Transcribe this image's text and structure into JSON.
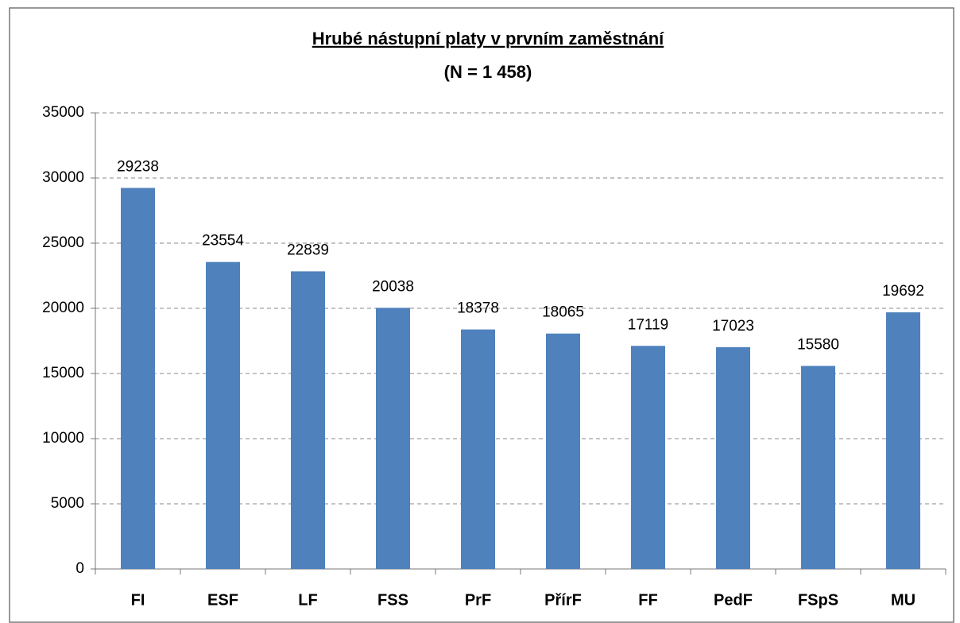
{
  "chart_data": {
    "type": "bar",
    "title": "Hrubé nástupní platy v prvním zaměstnání",
    "subtitle": "(N = 1 458)",
    "categories": [
      "FI",
      "ESF",
      "LF",
      "FSS",
      "PrF",
      "PřírF",
      "FF",
      "PedF",
      "FSpS",
      "MU"
    ],
    "values": [
      29238,
      23554,
      22839,
      20038,
      18378,
      18065,
      17119,
      17023,
      15580,
      19692
    ],
    "color": "#4f81bd",
    "ylim": [
      0,
      35000
    ],
    "yticks": [
      0,
      5000,
      10000,
      15000,
      20000,
      25000,
      30000,
      35000
    ],
    "grid": true
  }
}
